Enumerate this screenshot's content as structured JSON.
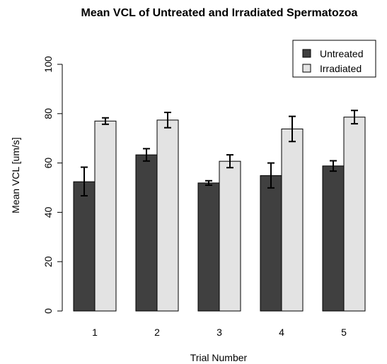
{
  "chart_data": {
    "type": "bar",
    "title": "Mean VCL of Untreated and Irradiated Spermatozoa",
    "xlabel": "Trial Number",
    "ylabel": "Mean VCL [um/s]",
    "categories": [
      "1",
      "2",
      "3",
      "4",
      "5"
    ],
    "ylim": [
      0,
      100
    ],
    "yticks": [
      "0",
      "20",
      "40",
      "60",
      "80",
      "100"
    ],
    "grid": false,
    "legend_position": "top-right",
    "error_bars": true,
    "series": [
      {
        "name": "Untreated",
        "color": "#404040",
        "values": [
          52.4,
          63.3,
          51.9,
          54.9,
          58.8
        ],
        "error_low": [
          46.7,
          60.8,
          51.0,
          49.9,
          56.7
        ],
        "error_high": [
          58.3,
          65.8,
          52.8,
          60.0,
          60.9
        ]
      },
      {
        "name": "Irradiated",
        "color": "#e3e3e3",
        "values": [
          77.0,
          77.4,
          60.7,
          73.8,
          78.6
        ],
        "error_low": [
          75.7,
          74.3,
          58.1,
          68.7,
          75.9
        ],
        "error_high": [
          78.3,
          80.5,
          63.3,
          78.9,
          81.3
        ]
      }
    ]
  }
}
